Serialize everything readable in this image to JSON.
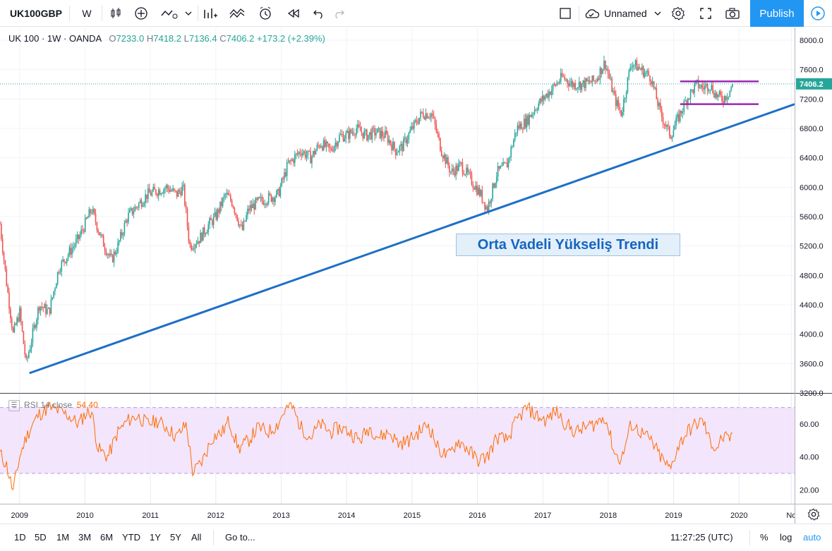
{
  "toolbar": {
    "symbol": "UK100GBP",
    "interval": "W",
    "layout_name": "Unnamed",
    "publish_label": "Publish"
  },
  "legend": {
    "title": "UK 100 · 1W · OANDA",
    "open_label": "O",
    "open": "7233.0",
    "high_label": "H",
    "high": "7418.2",
    "low_label": "L",
    "low": "7136.4",
    "close_label": "C",
    "close": "7406.2",
    "change": "+173.2 (+2.39%)"
  },
  "rsi_legend": {
    "label": "RSI 14 close",
    "value": "54.40"
  },
  "annotation": "Orta Vadeli Yükseliş Trendi",
  "last_price_label": "7406.2",
  "bottom_bar": {
    "ranges": [
      "1D",
      "5D",
      "1M",
      "3M",
      "6M",
      "YTD",
      "1Y",
      "5Y",
      "All"
    ],
    "goto": "Go to...",
    "time": "11:27:25 (UTC)",
    "pct": "%",
    "log": "log",
    "auto": "auto"
  },
  "colors": {
    "up": "#26a69a",
    "down": "#ef5350",
    "trendline": "#1e6fc6",
    "range_lines": "#9c27b0",
    "rsi_line": "#ff6d00",
    "rsi_band": "#f3e5fc",
    "accent": "#2196f3"
  },
  "chart_data": [
    {
      "type": "candlestick",
      "title": "UK 100 · 1W · OANDA",
      "x_ticks": [
        "2009",
        "2010",
        "2011",
        "2012",
        "2013",
        "2014",
        "2015",
        "2016",
        "2017",
        "2018",
        "2019",
        "2020",
        "No"
      ],
      "y_ticks": [
        8000,
        7600,
        7200,
        6800,
        6400,
        6000,
        5600,
        5200,
        4800,
        4400,
        4000,
        3600,
        3200
      ],
      "y_tick_labels": [
        "8000.0",
        "7600.0",
        "7200.0",
        "6800.0",
        "6400.0",
        "6000.0",
        "5600.0",
        "5200.0",
        "4800.0",
        "4400.0",
        "4000.0",
        "3600.0",
        "3200.0"
      ],
      "ylim": [
        3200,
        8000
      ],
      "xlim": [
        2008.7,
        2020.85
      ],
      "last_price": 7406.2,
      "series": [
        {
          "name": "UK100GBP",
          "x": [
            2008.7,
            2008.8,
            2008.9,
            2009.0,
            2009.1,
            2009.2,
            2009.3,
            2009.45,
            2009.6,
            2009.75,
            2009.9,
            2010.0,
            2010.1,
            2010.25,
            2010.4,
            2010.5,
            2010.65,
            2010.8,
            2010.95,
            2011.1,
            2011.25,
            2011.4,
            2011.5,
            2011.6,
            2011.75,
            2011.9,
            2012.0,
            2012.15,
            2012.25,
            2012.4,
            2012.5,
            2012.65,
            2012.8,
            2012.95,
            2013.1,
            2013.3,
            2013.45,
            2013.6,
            2013.75,
            2013.9,
            2014.0,
            2014.15,
            2014.3,
            2014.45,
            2014.6,
            2014.75,
            2014.85,
            2015.0,
            2015.15,
            2015.3,
            2015.45,
            2015.6,
            2015.75,
            2015.9,
            2016.05,
            2016.15,
            2016.3,
            2016.45,
            2016.6,
            2016.75,
            2016.9,
            2017.1,
            2017.3,
            2017.45,
            2017.6,
            2017.8,
            2017.95,
            2018.1,
            2018.2,
            2018.35,
            2018.5,
            2018.65,
            2018.8,
            2018.95,
            2019.05,
            2019.2,
            2019.35,
            2019.45,
            2019.55,
            2019.65,
            2019.75,
            2019.85,
            2019.9
          ],
          "close": [
            5500,
            4700,
            4000,
            4300,
            3600,
            4000,
            4400,
            4300,
            4900,
            5100,
            5300,
            5500,
            5700,
            5300,
            5000,
            5200,
            5600,
            5750,
            5900,
            5950,
            6000,
            5900,
            6000,
            5200,
            5300,
            5500,
            5600,
            5900,
            5800,
            5400,
            5700,
            5800,
            5850,
            5900,
            6300,
            6500,
            6400,
            6600,
            6500,
            6700,
            6700,
            6800,
            6700,
            6750,
            6700,
            6500,
            6550,
            6800,
            7000,
            7000,
            6500,
            6200,
            6300,
            6100,
            5900,
            5700,
            6200,
            6300,
            6800,
            6900,
            7100,
            7300,
            7500,
            7400,
            7400,
            7450,
            7700,
            7200,
            7000,
            7700,
            7600,
            7500,
            7000,
            6700,
            6900,
            7200,
            7400,
            7350,
            7400,
            7250,
            7200,
            7300,
            7406
          ]
        }
      ],
      "trendline": {
        "from": {
          "x": 2009.15,
          "y": 3470
        },
        "to": {
          "x": 2020.85,
          "y": 7130
        },
        "label": "Orta Vadeli Yükseliş Trendi"
      },
      "range_lines": [
        {
          "from_x": 2019.1,
          "to_x": 2020.3,
          "y": 7440
        },
        {
          "from_x": 2019.1,
          "to_x": 2020.3,
          "y": 7130
        }
      ]
    },
    {
      "type": "line",
      "name": "RSI 14 close",
      "x_ticks": [
        "2009",
        "2010",
        "2011",
        "2012",
        "2013",
        "2014",
        "2015",
        "2016",
        "2017",
        "2018",
        "2019",
        "2020",
        "No"
      ],
      "y_ticks": [
        60,
        40,
        20
      ],
      "y_tick_labels": [
        "60.00",
        "40.00",
        "20.00"
      ],
      "ylim": [
        15,
        75
      ],
      "band": [
        30,
        70
      ],
      "series": [
        {
          "name": "RSI 14 close",
          "x": [
            2008.7,
            2008.8,
            2008.9,
            2009.0,
            2009.1,
            2009.2,
            2009.3,
            2009.45,
            2009.6,
            2009.75,
            2009.9,
            2010.0,
            2010.1,
            2010.2,
            2010.35,
            2010.5,
            2010.65,
            2010.8,
            2010.95,
            2011.1,
            2011.25,
            2011.4,
            2011.55,
            2011.65,
            2011.8,
            2011.95,
            2012.1,
            2012.2,
            2012.35,
            2012.5,
            2012.65,
            2012.8,
            2012.95,
            2013.05,
            2013.15,
            2013.3,
            2013.45,
            2013.6,
            2013.75,
            2013.9,
            2014.05,
            2014.2,
            2014.35,
            2014.5,
            2014.65,
            2014.8,
            2014.95,
            2015.1,
            2015.25,
            2015.4,
            2015.55,
            2015.7,
            2015.85,
            2016.0,
            2016.15,
            2016.3,
            2016.45,
            2016.6,
            2016.75,
            2016.9,
            2017.05,
            2017.2,
            2017.35,
            2017.5,
            2017.65,
            2017.8,
            2017.95,
            2018.1,
            2018.2,
            2018.35,
            2018.5,
            2018.65,
            2018.8,
            2018.95,
            2019.05,
            2019.2,
            2019.35,
            2019.45,
            2019.55,
            2019.65,
            2019.75,
            2019.85,
            2019.9
          ],
          "values": [
            42,
            35,
            19,
            40,
            52,
            60,
            66,
            70,
            68,
            65,
            60,
            66,
            68,
            45,
            40,
            55,
            62,
            65,
            60,
            62,
            58,
            52,
            60,
            30,
            38,
            52,
            55,
            62,
            45,
            50,
            58,
            55,
            60,
            68,
            72,
            58,
            52,
            60,
            55,
            58,
            55,
            50,
            58,
            52,
            55,
            48,
            50,
            55,
            60,
            45,
            40,
            50,
            45,
            38,
            40,
            52,
            50,
            62,
            70,
            65,
            62,
            68,
            60,
            55,
            58,
            60,
            65,
            42,
            38,
            60,
            55,
            50,
            40,
            32,
            45,
            55,
            60,
            62,
            50,
            45,
            52,
            50,
            54.4
          ]
        }
      ]
    }
  ]
}
